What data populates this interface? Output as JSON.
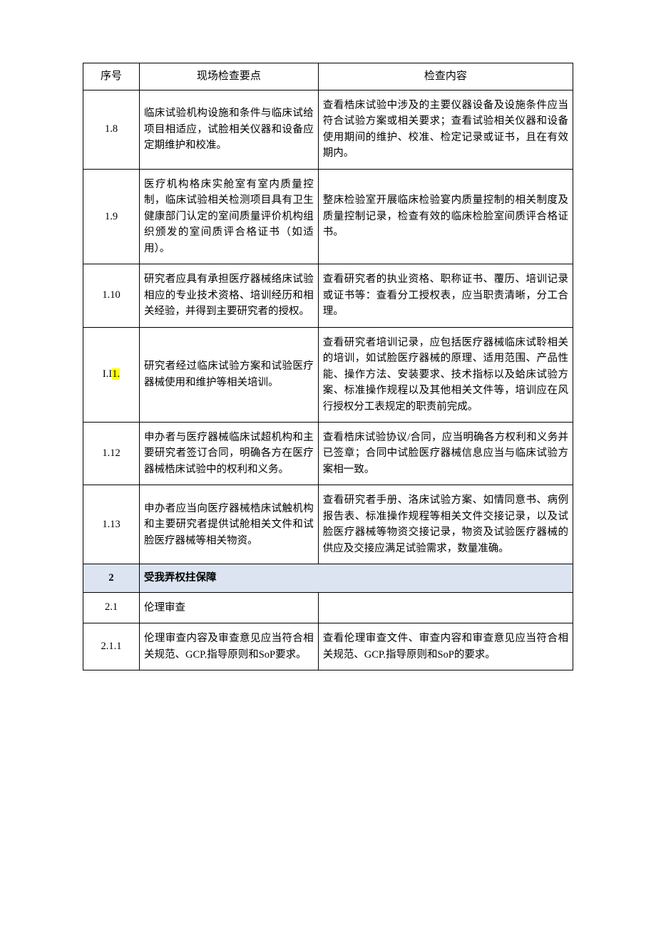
{
  "table": {
    "border_color": "#000000",
    "background_color": "#ffffff",
    "section_bg_color": "#dbe4f0",
    "highlight_color": "#ffff00",
    "font_size_header": 15,
    "font_size_body": 14.5,
    "line_height": 1.55,
    "col_widths_pct": [
      11.5,
      36.5,
      52.0
    ],
    "headers": {
      "seq": "序号",
      "point": "现场检查要点",
      "content": "检查内容"
    },
    "rows": [
      {
        "seq": "1.8",
        "point": "临床试验机构设施和条件与临床试给项目相适应，试脸相关仪器和设备应定期维护和校准。",
        "content": "查看梏床试验中涉及的主要仪器设备及设施条件应当符合试验方案或相关要求；查看试验相关仪器和设备使用期间的维护、校准、检定记录或证书，且在有效期内。"
      },
      {
        "seq": "1.9",
        "point": "医疗机构格床实舱室有室内质量控制，临床试验相关检测项目具有卫生健康部门认定的室间质量评价机构组织颁发的室间质评合格证书（如适用）。",
        "content": "整床检验室开展临床检验宴内质量控制的相关制度及质量控制记录，检查有效的临床检脸室间质评合格证书。"
      },
      {
        "seq": "1.10",
        "point": "研究者应具有承担医疗器械络床试验相应的专业技术资格、培训经历和相关经验，并得到主要研究者的授权。",
        "content": "查看研究者的执业资格、职称证书、覆历、培训记录或证书等：查看分工授权表，应当职责清晰，分工合理。"
      },
      {
        "seq_pre": "I.I",
        "seq_hl": "1.",
        "point": "研究者经过临床试验方案和试验医疗器械使用和维护等相关培训。",
        "content": "查看研究者培训记录，应包括医疗器械临床试聆相关的培训，如试脸医疗器械的原理、适用范围、产品性能、操作方法、安装要求、技术指标以及蛤床试验方案、标准操作规程以及其他相关文件等，培训应在风行授权分工表规定的职责前完成。"
      },
      {
        "seq": "1.12",
        "point": "申办者与医疗器械临床试超机构和主要研究者签订合同，明确各方在医疗器械梏床试验中的权利和义务。",
        "content": "查看梏床试验协议/合同，应当明确各方权利和义务并已签章；合同中试脸医疗器械信息应当与临床试验方案相一致。"
      },
      {
        "seq": "1.13",
        "point": "申办者应当向医疗器械梏床试触机构和主要研究者提供试舱相关文件和试脸医疗器械等相关物资。",
        "content": "查看研究者手册、洛床试验方案、如情同意书、病例报告表、标准操作规程等相关文件交接记录，以及试脸医疗器械等物资交接记录，物资及试验医疗器械的供应及交接应满足试验需求，数量准确。"
      },
      {
        "section": true,
        "seq": "2",
        "point": "受我弄权拄保障"
      },
      {
        "seq": "2.1",
        "point": "伦理审查",
        "content_empty": true
      },
      {
        "seq": "2.1.1",
        "point": "伦理审查内容及审查意见应当符合相关规范、GCP.指导原则和SoP要求。",
        "content": "查看伦理审查文件、审查内容和审查意见应当符合相关规范、GCP.指导原则和SoP的要求。"
      }
    ]
  }
}
